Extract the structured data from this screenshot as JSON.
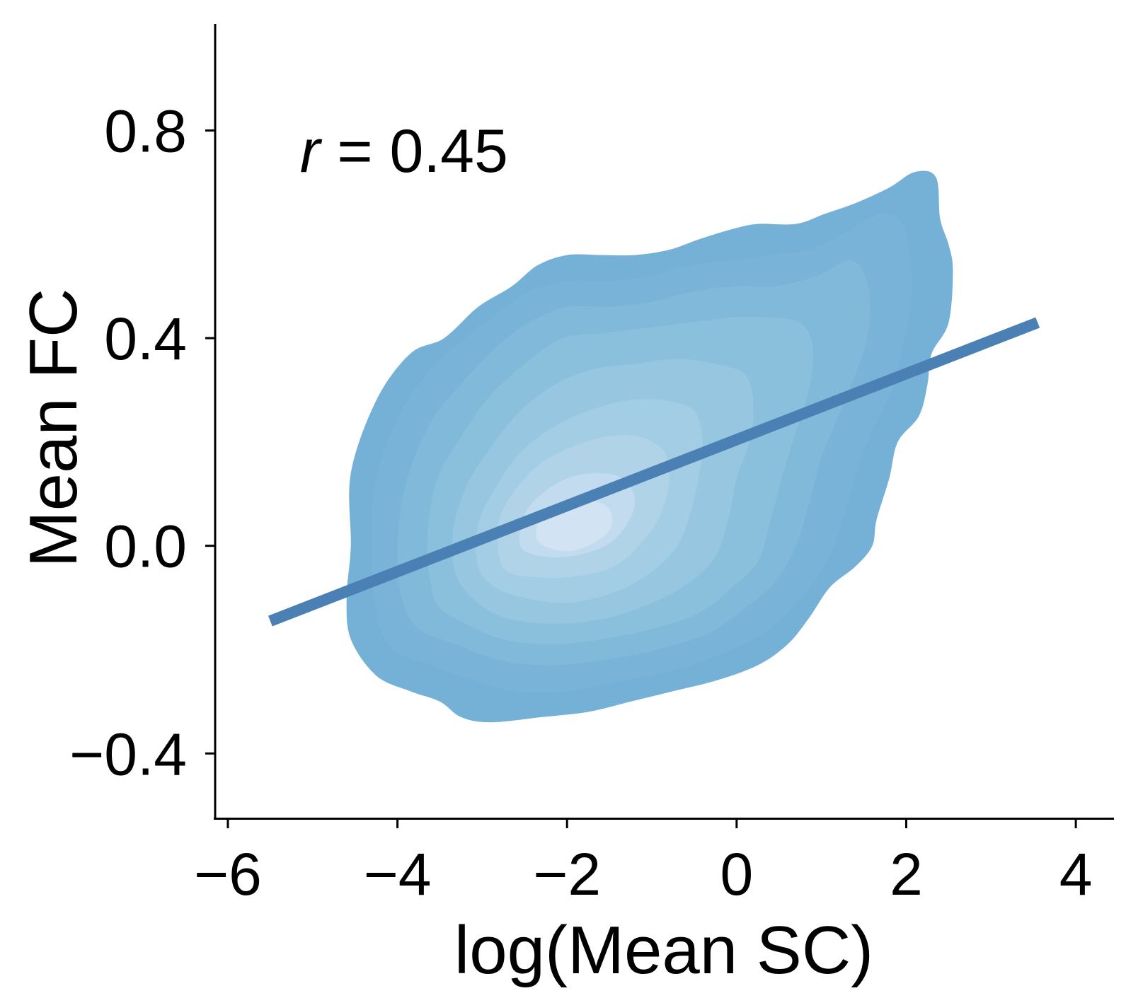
{
  "chart_data": {
    "type": "kde_contour_with_regression",
    "xlabel": "log(Mean SC)",
    "ylabel": "Mean FC",
    "xlim": [
      -6.15,
      4.45
    ],
    "ylim": [
      -0.525,
      1.005
    ],
    "xticks": [
      -6,
      -4,
      -2,
      0,
      2,
      4
    ],
    "xtick_labels": [
      "−6",
      "−4",
      "−2",
      "0",
      "2",
      "4"
    ],
    "yticks": [
      -0.4,
      0.0,
      0.4,
      0.8
    ],
    "ytick_labels": [
      "−0.4",
      "0.0",
      "0.4",
      "0.8"
    ],
    "grid": false,
    "annotation": {
      "r_label": "r",
      "r_value_text": " = 0.45",
      "r_value": 0.45,
      "x": -5.15,
      "y": 0.72
    },
    "regression_line": {
      "x": [
        -5.5,
        3.55
      ],
      "y": [
        -0.145,
        0.43
      ],
      "color": "#4a80b4"
    },
    "density_levels": [
      {
        "color": "#75b1d7",
        "points": [
          [
            -4.6,
            -0.1
          ],
          [
            -4.55,
            0.0
          ],
          [
            -4.55,
            0.14
          ],
          [
            -4.25,
            0.28
          ],
          [
            -3.85,
            0.37
          ],
          [
            -3.45,
            0.4
          ],
          [
            -3.05,
            0.46
          ],
          [
            -2.65,
            0.5
          ],
          [
            -2.35,
            0.54
          ],
          [
            -2.0,
            0.56
          ],
          [
            -1.6,
            0.56
          ],
          [
            -1.2,
            0.56
          ],
          [
            -0.8,
            0.57
          ],
          [
            -0.45,
            0.59
          ],
          [
            -0.05,
            0.61
          ],
          [
            0.25,
            0.62
          ],
          [
            0.7,
            0.62
          ],
          [
            1.05,
            0.64
          ],
          [
            1.4,
            0.66
          ],
          [
            1.8,
            0.69
          ],
          [
            2.1,
            0.72
          ],
          [
            2.35,
            0.71
          ],
          [
            2.4,
            0.63
          ],
          [
            2.5,
            0.58
          ],
          [
            2.55,
            0.53
          ],
          [
            2.5,
            0.43
          ],
          [
            2.3,
            0.37
          ],
          [
            2.25,
            0.31
          ],
          [
            2.15,
            0.25
          ],
          [
            1.9,
            0.2
          ],
          [
            1.8,
            0.13
          ],
          [
            1.65,
            0.05
          ],
          [
            1.6,
            0.0
          ],
          [
            1.4,
            -0.04
          ],
          [
            1.1,
            -0.08
          ],
          [
            0.85,
            -0.14
          ],
          [
            0.6,
            -0.19
          ],
          [
            0.25,
            -0.23
          ],
          [
            -0.25,
            -0.26
          ],
          [
            -0.75,
            -0.28
          ],
          [
            -1.25,
            -0.3
          ],
          [
            -1.75,
            -0.32
          ],
          [
            -2.3,
            -0.33
          ],
          [
            -2.9,
            -0.34
          ],
          [
            -3.25,
            -0.33
          ],
          [
            -3.5,
            -0.3
          ],
          [
            -3.85,
            -0.28
          ],
          [
            -4.25,
            -0.25
          ],
          [
            -4.55,
            -0.18
          ]
        ]
      },
      {
        "color": "#79b4d8",
        "points": [
          [
            -4.25,
            -0.13
          ],
          [
            -4.3,
            0.0
          ],
          [
            -4.25,
            0.13
          ],
          [
            -3.95,
            0.26
          ],
          [
            -3.55,
            0.35
          ],
          [
            -3.2,
            0.4
          ],
          [
            -2.8,
            0.45
          ],
          [
            -2.45,
            0.49
          ],
          [
            -2.0,
            0.51
          ],
          [
            -1.5,
            0.51
          ],
          [
            -1.0,
            0.52
          ],
          [
            -0.55,
            0.54
          ],
          [
            -0.05,
            0.55
          ],
          [
            0.4,
            0.56
          ],
          [
            0.85,
            0.57
          ],
          [
            1.25,
            0.6
          ],
          [
            1.7,
            0.64
          ],
          [
            1.95,
            0.62
          ],
          [
            2.05,
            0.55
          ],
          [
            2.05,
            0.46
          ],
          [
            1.95,
            0.38
          ],
          [
            1.85,
            0.31
          ],
          [
            1.65,
            0.24
          ],
          [
            1.45,
            0.16
          ],
          [
            1.3,
            0.08
          ],
          [
            1.15,
            0.0
          ],
          [
            0.95,
            -0.06
          ],
          [
            0.65,
            -0.12
          ],
          [
            0.3,
            -0.17
          ],
          [
            -0.2,
            -0.21
          ],
          [
            -0.75,
            -0.24
          ],
          [
            -1.35,
            -0.26
          ],
          [
            -2.0,
            -0.28
          ],
          [
            -2.6,
            -0.28
          ],
          [
            -3.1,
            -0.26
          ],
          [
            -3.6,
            -0.23
          ],
          [
            -4.05,
            -0.2
          ]
        ]
      },
      {
        "color": "#80b9da",
        "points": [
          [
            -3.95,
            -0.1
          ],
          [
            -4.0,
            0.0
          ],
          [
            -3.9,
            0.12
          ],
          [
            -3.6,
            0.24
          ],
          [
            -3.2,
            0.32
          ],
          [
            -2.85,
            0.38
          ],
          [
            -2.45,
            0.43
          ],
          [
            -2.0,
            0.46
          ],
          [
            -1.5,
            0.46
          ],
          [
            -1.0,
            0.47
          ],
          [
            -0.5,
            0.49
          ],
          [
            0.0,
            0.5
          ],
          [
            0.45,
            0.5
          ],
          [
            0.95,
            0.52
          ],
          [
            1.35,
            0.55
          ],
          [
            1.55,
            0.5
          ],
          [
            1.55,
            0.41
          ],
          [
            1.4,
            0.33
          ],
          [
            1.2,
            0.25
          ],
          [
            1.0,
            0.17
          ],
          [
            0.85,
            0.08
          ],
          [
            0.7,
            0.0
          ],
          [
            0.45,
            -0.07
          ],
          [
            0.1,
            -0.12
          ],
          [
            -0.35,
            -0.17
          ],
          [
            -0.95,
            -0.2
          ],
          [
            -1.55,
            -0.22
          ],
          [
            -2.2,
            -0.23
          ],
          [
            -2.8,
            -0.22
          ],
          [
            -3.3,
            -0.19
          ],
          [
            -3.75,
            -0.16
          ]
        ]
      },
      {
        "color": "#8bc0dd",
        "points": [
          [
            -3.6,
            -0.08
          ],
          [
            -3.65,
            0.0
          ],
          [
            -3.55,
            0.12
          ],
          [
            -3.25,
            0.21
          ],
          [
            -2.9,
            0.29
          ],
          [
            -2.5,
            0.35
          ],
          [
            -2.05,
            0.4
          ],
          [
            -1.55,
            0.41
          ],
          [
            -1.05,
            0.42
          ],
          [
            -0.55,
            0.43
          ],
          [
            -0.05,
            0.44
          ],
          [
            0.35,
            0.44
          ],
          [
            0.75,
            0.43
          ],
          [
            0.9,
            0.38
          ],
          [
            0.85,
            0.3
          ],
          [
            0.7,
            0.22
          ],
          [
            0.55,
            0.14
          ],
          [
            0.4,
            0.05
          ],
          [
            0.25,
            -0.03
          ],
          [
            -0.05,
            -0.08
          ],
          [
            -0.45,
            -0.13
          ],
          [
            -1.0,
            -0.16
          ],
          [
            -1.6,
            -0.18
          ],
          [
            -2.2,
            -0.19
          ],
          [
            -2.75,
            -0.18
          ],
          [
            -3.2,
            -0.15
          ],
          [
            -3.5,
            -0.12
          ]
        ]
      },
      {
        "color": "#97c6e0",
        "points": [
          [
            -3.3,
            -0.06
          ],
          [
            -3.35,
            0.02
          ],
          [
            -3.2,
            0.11
          ],
          [
            -2.9,
            0.19
          ],
          [
            -2.55,
            0.26
          ],
          [
            -2.15,
            0.31
          ],
          [
            -1.7,
            0.34
          ],
          [
            -1.2,
            0.35
          ],
          [
            -0.7,
            0.36
          ],
          [
            -0.25,
            0.35
          ],
          [
            0.1,
            0.33
          ],
          [
            0.2,
            0.27
          ],
          [
            0.15,
            0.2
          ],
          [
            0.0,
            0.13
          ],
          [
            -0.1,
            0.05
          ],
          [
            -0.25,
            -0.02
          ],
          [
            -0.55,
            -0.07
          ],
          [
            -1.0,
            -0.11
          ],
          [
            -1.55,
            -0.14
          ],
          [
            -2.15,
            -0.15
          ],
          [
            -2.7,
            -0.14
          ],
          [
            -3.05,
            -0.11
          ]
        ]
      },
      {
        "color": "#a3cde4",
        "points": [
          [
            -3.05,
            -0.04
          ],
          [
            -3.05,
            0.04
          ],
          [
            -2.85,
            0.11
          ],
          [
            -2.55,
            0.18
          ],
          [
            -2.15,
            0.23
          ],
          [
            -1.75,
            0.26
          ],
          [
            -1.3,
            0.28
          ],
          [
            -0.85,
            0.28
          ],
          [
            -0.5,
            0.26
          ],
          [
            -0.4,
            0.2
          ],
          [
            -0.45,
            0.13
          ],
          [
            -0.55,
            0.06
          ],
          [
            -0.7,
            0.0
          ],
          [
            -1.0,
            -0.05
          ],
          [
            -1.45,
            -0.09
          ],
          [
            -2.0,
            -0.11
          ],
          [
            -2.5,
            -0.1
          ],
          [
            -2.85,
            -0.08
          ]
        ]
      },
      {
        "color": "#b0d3e8",
        "points": [
          [
            -2.8,
            -0.02
          ],
          [
            -2.8,
            0.05
          ],
          [
            -2.6,
            0.11
          ],
          [
            -2.3,
            0.16
          ],
          [
            -1.95,
            0.19
          ],
          [
            -1.55,
            0.21
          ],
          [
            -1.15,
            0.21
          ],
          [
            -0.85,
            0.18
          ],
          [
            -0.8,
            0.12
          ],
          [
            -0.9,
            0.06
          ],
          [
            -1.1,
            0.01
          ],
          [
            -1.45,
            -0.04
          ],
          [
            -1.95,
            -0.06
          ],
          [
            -2.4,
            -0.06
          ],
          [
            -2.7,
            -0.05
          ]
        ]
      },
      {
        "color": "#c2dbee",
        "points": [
          [
            -2.55,
            0.0
          ],
          [
            -2.5,
            0.06
          ],
          [
            -2.3,
            0.1
          ],
          [
            -2.0,
            0.13
          ],
          [
            -1.65,
            0.14
          ],
          [
            -1.35,
            0.13
          ],
          [
            -1.2,
            0.09
          ],
          [
            -1.3,
            0.04
          ],
          [
            -1.55,
            0.0
          ],
          [
            -1.95,
            -0.02
          ],
          [
            -2.3,
            -0.02
          ]
        ]
      },
      {
        "color": "#d2e3f3",
        "points": [
          [
            -2.35,
            0.01
          ],
          [
            -2.3,
            0.06
          ],
          [
            -2.05,
            0.08
          ],
          [
            -1.75,
            0.09
          ],
          [
            -1.5,
            0.07
          ],
          [
            -1.5,
            0.03
          ],
          [
            -1.75,
            0.0
          ],
          [
            -2.05,
            -0.01
          ]
        ]
      }
    ]
  }
}
